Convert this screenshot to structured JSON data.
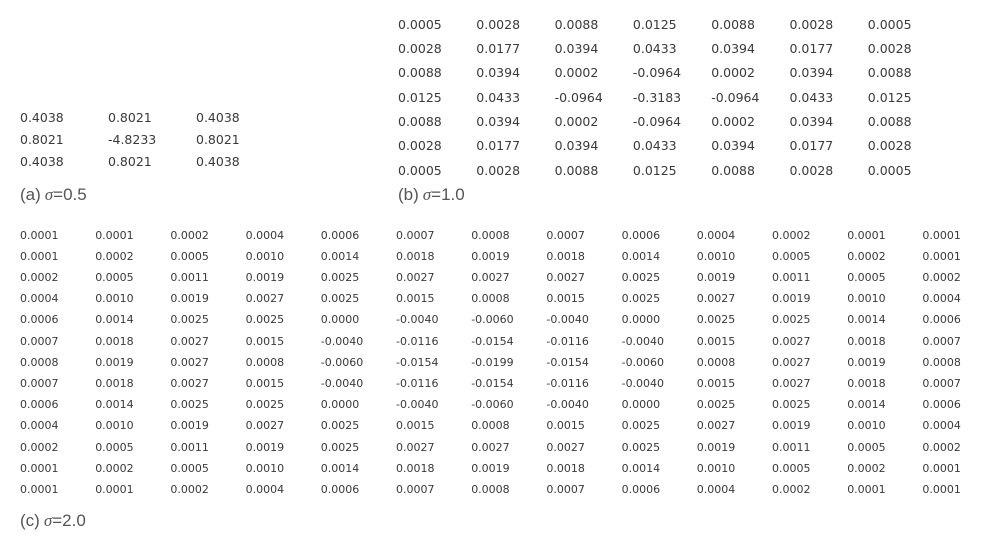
{
  "panels": [
    {
      "caption": {
        "label": "(a)",
        "symbol": "σ",
        "value": "=0.5"
      },
      "rows": [
        [
          "0.4038",
          "0.8021",
          "0.4038"
        ],
        [
          "0.8021",
          "-4.8233",
          "0.8021"
        ],
        [
          "0.4038",
          "0.8021",
          "0.4038"
        ]
      ]
    },
    {
      "caption": {
        "label": "(b)",
        "symbol": "σ",
        "value": "=1.0"
      },
      "rows": [
        [
          "0.0005",
          "0.0028",
          "0.0088",
          "0.0125",
          "0.0088",
          "0.0028",
          "0.0005"
        ],
        [
          "0.0028",
          "0.0177",
          "0.0394",
          "0.0433",
          "0.0394",
          "0.0177",
          "0.0028"
        ],
        [
          "0.0088",
          "0.0394",
          "0.0002",
          "-0.0964",
          "0.0002",
          "0.0394",
          "0.0088"
        ],
        [
          "0.0125",
          "0.0433",
          "-0.0964",
          "-0.3183",
          "-0.0964",
          "0.0433",
          "0.0125"
        ],
        [
          "0.0088",
          "0.0394",
          "0.0002",
          "-0.0964",
          "0.0002",
          "0.0394",
          "0.0088"
        ],
        [
          "0.0028",
          "0.0177",
          "0.0394",
          "0.0433",
          "0.0394",
          "0.0177",
          "0.0028"
        ],
        [
          "0.0005",
          "0.0028",
          "0.0088",
          "0.0125",
          "0.0088",
          "0.0028",
          "0.0005"
        ]
      ]
    },
    {
      "caption": {
        "label": "(c)",
        "symbol": "σ",
        "value": "=2.0"
      },
      "rows": [
        [
          "0.0001",
          "0.0001",
          "0.0002",
          "0.0004",
          "0.0006",
          "0.0007",
          "0.0008",
          "0.0007",
          "0.0006",
          "0.0004",
          "0.0002",
          "0.0001",
          "0.0001"
        ],
        [
          "0.0001",
          "0.0002",
          "0.0005",
          "0.0010",
          "0.0014",
          "0.0018",
          "0.0019",
          "0.0018",
          "0.0014",
          "0.0010",
          "0.0005",
          "0.0002",
          "0.0001"
        ],
        [
          "0.0002",
          "0.0005",
          "0.0011",
          "0.0019",
          "0.0025",
          "0.0027",
          "0.0027",
          "0.0027",
          "0.0025",
          "0.0019",
          "0.0011",
          "0.0005",
          "0.0002"
        ],
        [
          "0.0004",
          "0.0010",
          "0.0019",
          "0.0027",
          "0.0025",
          "0.0015",
          "0.0008",
          "0.0015",
          "0.0025",
          "0.0027",
          "0.0019",
          "0.0010",
          "0.0004"
        ],
        [
          "0.0006",
          "0.0014",
          "0.0025",
          "0.0025",
          "0.0000",
          "-0.0040",
          "-0.0060",
          "-0.0040",
          "0.0000",
          "0.0025",
          "0.0025",
          "0.0014",
          "0.0006"
        ],
        [
          "0.0007",
          "0.0018",
          "0.0027",
          "0.0015",
          "-0.0040",
          "-0.0116",
          "-0.0154",
          "-0.0116",
          "-0.0040",
          "0.0015",
          "0.0027",
          "0.0018",
          "0.0007"
        ],
        [
          "0.0008",
          "0.0019",
          "0.0027",
          "0.0008",
          "-0.0060",
          "-0.0154",
          "-0.0199",
          "-0.0154",
          "-0.0060",
          "0.0008",
          "0.0027",
          "0.0019",
          "0.0008"
        ],
        [
          "0.0007",
          "0.0018",
          "0.0027",
          "0.0015",
          "-0.0040",
          "-0.0116",
          "-0.0154",
          "-0.0116",
          "-0.0040",
          "0.0015",
          "0.0027",
          "0.0018",
          "0.0007"
        ],
        [
          "0.0006",
          "0.0014",
          "0.0025",
          "0.0025",
          "0.0000",
          "-0.0040",
          "-0.0060",
          "-0.0040",
          "0.0000",
          "0.0025",
          "0.0025",
          "0.0014",
          "0.0006"
        ],
        [
          "0.0004",
          "0.0010",
          "0.0019",
          "0.0027",
          "0.0025",
          "0.0015",
          "0.0008",
          "0.0015",
          "0.0025",
          "0.0027",
          "0.0019",
          "0.0010",
          "0.0004"
        ],
        [
          "0.0002",
          "0.0005",
          "0.0011",
          "0.0019",
          "0.0025",
          "0.0027",
          "0.0027",
          "0.0027",
          "0.0025",
          "0.0019",
          "0.0011",
          "0.0005",
          "0.0002"
        ],
        [
          "0.0001",
          "0.0002",
          "0.0005",
          "0.0010",
          "0.0014",
          "0.0018",
          "0.0019",
          "0.0018",
          "0.0014",
          "0.0010",
          "0.0005",
          "0.0002",
          "0.0001"
        ],
        [
          "0.0001",
          "0.0001",
          "0.0002",
          "0.0004",
          "0.0006",
          "0.0007",
          "0.0008",
          "0.0007",
          "0.0006",
          "0.0004",
          "0.0002",
          "0.0001",
          "0.0001"
        ]
      ]
    }
  ]
}
